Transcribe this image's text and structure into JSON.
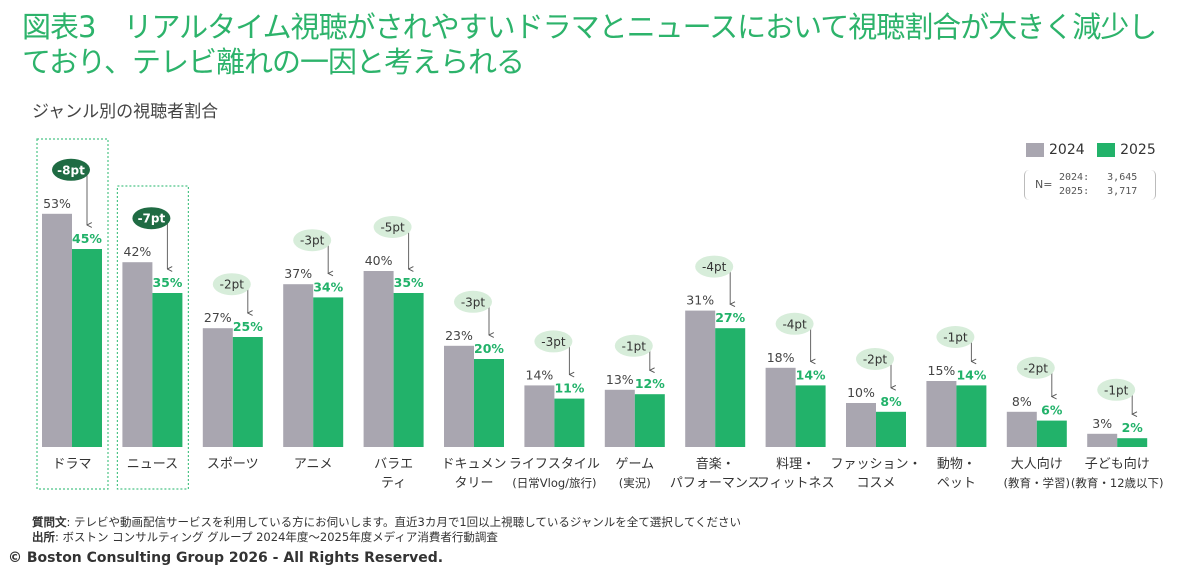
{
  "title": "図表3　リアルタイム視聴がされやすいドラマとニュースにおいて視聴割合が大きく減少しており、テレビ離れの一因と考えられる",
  "subtitle": "ジャンル別の視聴者割合",
  "legend": {
    "series1": "2024",
    "series2": "2025"
  },
  "n_label": "N=",
  "n_rows": [
    "2024:   3,645",
    "2025:   3,717"
  ],
  "footer": {
    "question_label": "質問文",
    "question_text": ": テレビや動画配信サービスを利用している方にお伺いします。直近3カ月で1回以上視聴しているジャンルを全て選択してください",
    "source_label": "出所",
    "source_text": ": ボストン コンサルティング グループ 2024年度～2025年度メディア消費者行動調査"
  },
  "copyright": "© Boston Consulting Group 2026 - All Rights Reserved.",
  "colors": {
    "title": "#2db36b",
    "bar2024": "#a9a6b0",
    "bar2025": "#22b26a",
    "bubble_light": "#d7edda",
    "bubble_dark": "#1f6b43",
    "label2025": "#22b26a",
    "highlight_border": "#4cc486"
  },
  "chart_data": {
    "type": "bar",
    "categories": [
      [
        "ドラマ"
      ],
      [
        "ニュース"
      ],
      [
        "スポーツ"
      ],
      [
        "アニメ"
      ],
      [
        "バラエ",
        "ティ"
      ],
      [
        "ドキュメン",
        "タリー"
      ],
      [
        "ライフスタイル",
        "(日常Vlog/旅行)"
      ],
      [
        "ゲーム",
        "(実況)"
      ],
      [
        "音楽・",
        "パフォーマンス"
      ],
      [
        "料理・",
        "フィットネス"
      ],
      [
        "ファッション・",
        "コスメ"
      ],
      [
        "動物・",
        "ペット"
      ],
      [
        "大人向け",
        "(教育・学習)"
      ],
      [
        "子ども向け",
        "(教育・12歳以下)"
      ]
    ],
    "series": [
      {
        "name": "2024",
        "values": [
          53,
          42,
          27,
          37,
          40,
          23,
          14,
          13,
          31,
          18,
          10,
          15,
          8,
          3
        ]
      },
      {
        "name": "2025",
        "values": [
          45,
          35,
          25,
          34,
          35,
          20,
          11,
          12,
          27,
          14,
          8,
          14,
          6,
          2
        ]
      }
    ],
    "value_labels": {
      "2024": [
        "53%",
        "42%",
        "27%",
        "37%",
        "40%",
        "23%",
        "14%",
        "13%",
        "31%",
        "18%",
        "10%",
        "15%",
        "8%",
        "3%"
      ],
      "2025": [
        "45%",
        "35%",
        "25%",
        "34%",
        "35%",
        "20%",
        "11%",
        "12%",
        "27%",
        "14%",
        "8%",
        "14%",
        "6%",
        "2%"
      ]
    },
    "changes": [
      "-8pt",
      "-7pt",
      "-2pt",
      "-3pt",
      "-5pt",
      "-3pt",
      "-3pt",
      "-1pt",
      "-4pt",
      "-4pt",
      "-2pt",
      "-1pt",
      "-2pt",
      "-1pt"
    ],
    "highlighted_categories": [
      0,
      1
    ],
    "ylim": [
      0,
      60
    ],
    "unit": "%",
    "grid": false
  }
}
